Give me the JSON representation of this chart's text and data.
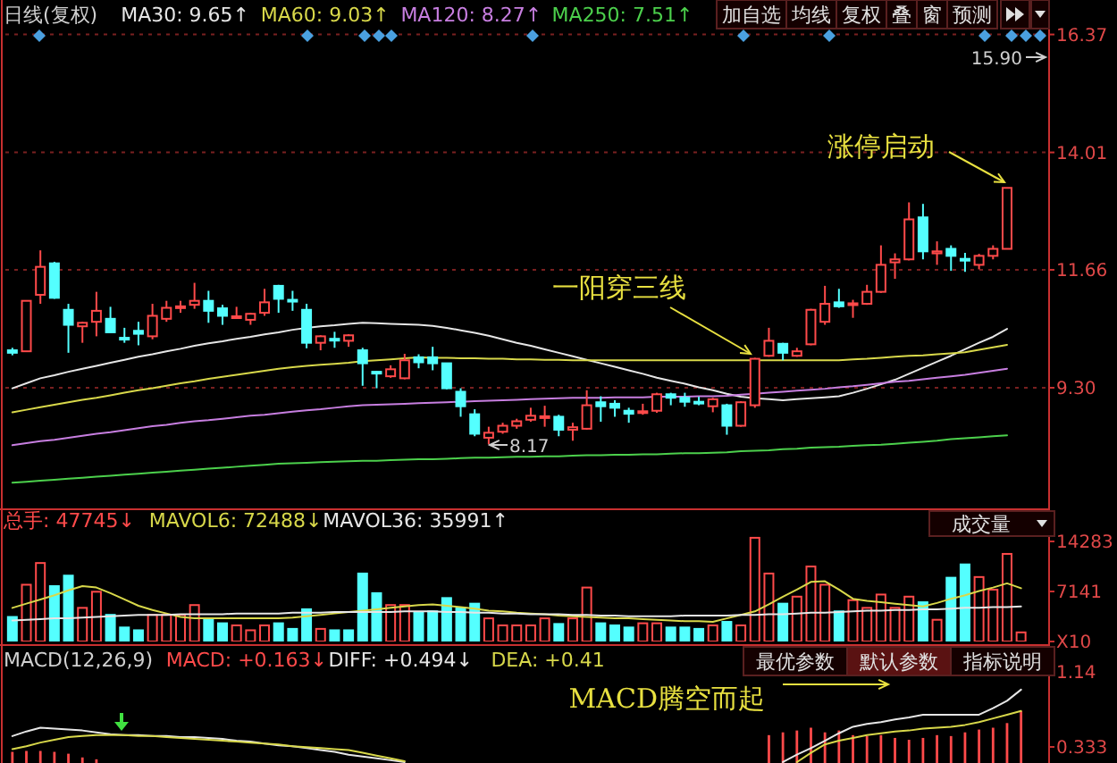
{
  "chart_data": [
    {
      "type": "candlestick",
      "title": "日线(复权)",
      "legend": "top left",
      "grid": "y",
      "tick_labels": "y",
      "categories": [
        null,
        null,
        null,
        null,
        null,
        null,
        null,
        null,
        null,
        null,
        null,
        null,
        null,
        null,
        null,
        null,
        null,
        null,
        null,
        null,
        null,
        null,
        null,
        null,
        null,
        null,
        null,
        null,
        null,
        null,
        null,
        null,
        null,
        null,
        null,
        null,
        null,
        null,
        null,
        null,
        null,
        null,
        null,
        null,
        null,
        null,
        null,
        null,
        null,
        null,
        null,
        null,
        null,
        null,
        null,
        null,
        null,
        null,
        null,
        null,
        null,
        null,
        null,
        null,
        null,
        null,
        null,
        null,
        null,
        null,
        null,
        null
      ],
      "ohlc": [
        [
          10.05,
          10.1,
          9.95,
          10.0
        ],
        [
          10.03,
          11.04,
          10.03,
          11.04
        ],
        [
          11.16,
          12.05,
          10.98,
          11.72
        ],
        [
          11.79,
          11.82,
          11.08,
          11.1
        ],
        [
          10.86,
          10.98,
          10.0,
          10.56
        ],
        [
          10.53,
          10.62,
          10.2,
          10.6
        ],
        [
          10.62,
          11.22,
          10.33,
          10.84
        ],
        [
          10.68,
          10.92,
          10.4,
          10.41
        ],
        [
          10.3,
          10.5,
          10.2,
          10.28
        ],
        [
          10.44,
          10.62,
          10.15,
          10.38
        ],
        [
          10.33,
          10.98,
          10.27,
          10.74
        ],
        [
          10.68,
          11.04,
          10.62,
          10.9
        ],
        [
          10.9,
          11.04,
          10.8,
          10.93
        ],
        [
          10.96,
          11.4,
          10.88,
          11.04
        ],
        [
          11.04,
          11.24,
          10.6,
          10.84
        ],
        [
          10.89,
          10.96,
          10.56,
          10.74
        ],
        [
          10.72,
          10.92,
          10.7,
          10.73
        ],
        [
          10.66,
          10.8,
          10.56,
          10.78
        ],
        [
          10.8,
          11.28,
          10.74,
          11.01
        ],
        [
          11.34,
          11.36,
          10.8,
          11.08
        ],
        [
          11.06,
          11.24,
          10.84,
          11.03
        ],
        [
          10.86,
          10.98,
          10.09,
          10.2
        ],
        [
          10.2,
          10.35,
          10.05,
          10.33
        ],
        [
          10.28,
          10.42,
          10.1,
          10.26
        ],
        [
          10.24,
          10.37,
          10.12,
          10.35
        ],
        [
          10.05,
          10.1,
          9.34,
          9.79
        ],
        [
          9.62,
          9.63,
          9.29,
          9.6
        ],
        [
          9.53,
          9.75,
          9.5,
          9.67
        ],
        [
          9.49,
          9.98,
          9.47,
          9.85
        ],
        [
          9.91,
          9.97,
          9.69,
          9.81
        ],
        [
          9.91,
          10.12,
          9.65,
          9.79
        ],
        [
          9.79,
          9.8,
          9.27,
          9.29
        ],
        [
          9.22,
          9.29,
          8.72,
          8.93
        ],
        [
          8.77,
          8.87,
          8.33,
          8.38
        ],
        [
          8.3,
          8.52,
          8.17,
          8.4
        ],
        [
          8.42,
          8.6,
          8.38,
          8.54
        ],
        [
          8.54,
          8.68,
          8.48,
          8.63
        ],
        [
          8.66,
          8.9,
          8.62,
          8.74
        ],
        [
          8.71,
          8.94,
          8.52,
          8.73
        ],
        [
          8.72,
          8.76,
          8.33,
          8.46
        ],
        [
          8.46,
          8.6,
          8.24,
          8.51
        ],
        [
          8.48,
          9.25,
          8.46,
          8.95
        ],
        [
          9.01,
          9.13,
          8.62,
          8.93
        ],
        [
          8.98,
          9.05,
          8.72,
          8.9
        ],
        [
          8.84,
          8.9,
          8.6,
          8.78
        ],
        [
          8.81,
          8.98,
          8.76,
          8.83
        ],
        [
          8.84,
          9.2,
          8.8,
          9.17
        ],
        [
          9.17,
          9.2,
          8.95,
          9.1
        ],
        [
          9.1,
          9.2,
          8.92,
          9.02
        ],
        [
          9.02,
          9.12,
          8.95,
          9.0
        ],
        [
          8.93,
          9.1,
          8.81,
          9.07
        ],
        [
          8.95,
          8.98,
          8.36,
          8.54
        ],
        [
          8.54,
          9.03,
          8.52,
          9.01
        ],
        [
          8.95,
          9.9,
          8.9,
          9.88
        ],
        [
          9.94,
          10.5,
          9.92,
          10.24
        ],
        [
          10.18,
          10.2,
          9.85,
          10.0
        ],
        [
          9.94,
          10.1,
          9.92,
          10.03
        ],
        [
          10.17,
          10.88,
          10.15,
          10.86
        ],
        [
          10.62,
          11.34,
          10.56,
          10.98
        ],
        [
          11.01,
          11.28,
          10.9,
          10.93
        ],
        [
          10.96,
          11.06,
          10.7,
          10.99
        ],
        [
          10.98,
          11.36,
          10.96,
          11.22
        ],
        [
          11.22,
          12.15,
          11.2,
          11.76
        ],
        [
          11.81,
          11.99,
          11.48,
          11.87
        ],
        [
          11.87,
          13.01,
          11.85,
          12.67
        ],
        [
          12.71,
          12.98,
          11.87,
          12.03
        ],
        [
          11.99,
          12.23,
          11.76,
          12.03
        ],
        [
          12.08,
          12.15,
          11.64,
          11.94
        ],
        [
          11.88,
          12.0,
          11.62,
          11.86
        ],
        [
          11.76,
          11.98,
          11.67,
          11.94
        ],
        [
          11.94,
          12.15,
          11.87,
          12.08
        ],
        [
          12.08,
          13.3,
          12.08,
          13.3
        ]
      ],
      "series": [
        {
          "type": "line",
          "name": "MA30: 9.65↑",
          "color": "#e6e6e6",
          "values": [
            9.29,
            9.39,
            9.49,
            9.55,
            9.62,
            9.68,
            9.74,
            9.8,
            9.86,
            9.92,
            9.97,
            10.03,
            10.08,
            10.14,
            10.19,
            10.23,
            10.28,
            10.32,
            10.37,
            10.41,
            10.46,
            10.5,
            10.53,
            10.55,
            10.58,
            10.6,
            10.59,
            10.58,
            10.57,
            10.56,
            10.54,
            10.5,
            10.45,
            10.4,
            10.34,
            10.27,
            10.2,
            10.14,
            10.07,
            10.0,
            9.93,
            9.86,
            9.79,
            9.72,
            9.65,
            9.58,
            9.5,
            9.44,
            9.38,
            9.31,
            9.25,
            9.18,
            9.12,
            9.09,
            9.07,
            9.05,
            9.07,
            9.09,
            9.11,
            9.13,
            9.2,
            9.28,
            9.37,
            9.46,
            9.58,
            9.7,
            9.82,
            9.94,
            10.07,
            10.2,
            10.32,
            10.48
          ]
        },
        {
          "type": "line",
          "name": "MA60: 9.03↑",
          "color": "#d8d84a",
          "values": [
            8.81,
            8.86,
            8.91,
            8.96,
            9.01,
            9.06,
            9.1,
            9.15,
            9.2,
            9.25,
            9.29,
            9.34,
            9.39,
            9.43,
            9.48,
            9.52,
            9.56,
            9.6,
            9.64,
            9.68,
            9.71,
            9.74,
            9.76,
            9.78,
            9.8,
            9.83,
            9.85,
            9.87,
            9.89,
            9.91,
            9.9,
            9.9,
            9.89,
            9.89,
            9.88,
            9.88,
            9.87,
            9.87,
            9.86,
            9.86,
            9.85,
            9.85,
            9.85,
            9.85,
            9.85,
            9.85,
            9.85,
            9.85,
            9.85,
            9.85,
            9.85,
            9.85,
            9.85,
            9.85,
            9.85,
            9.85,
            9.85,
            9.85,
            9.85,
            9.85,
            9.87,
            9.88,
            9.9,
            9.92,
            9.94,
            9.95,
            9.97,
            9.99,
            10.01,
            10.06,
            10.11,
            10.16
          ]
        },
        {
          "type": "line",
          "name": "MA120: 8.27↑",
          "color": "#c77ee0",
          "values": [
            8.15,
            8.19,
            8.23,
            8.26,
            8.3,
            8.34,
            8.38,
            8.41,
            8.45,
            8.49,
            8.53,
            8.56,
            8.6,
            8.63,
            8.65,
            8.68,
            8.71,
            8.74,
            8.76,
            8.79,
            8.82,
            8.85,
            8.87,
            8.9,
            8.93,
            8.95,
            8.96,
            8.97,
            8.98,
            8.99,
            9.0,
            9.01,
            9.02,
            9.03,
            9.04,
            9.05,
            9.06,
            9.07,
            9.08,
            9.09,
            9.1,
            9.1,
            9.1,
            9.11,
            9.11,
            9.11,
            9.12,
            9.12,
            9.12,
            9.13,
            9.13,
            9.14,
            9.16,
            9.18,
            9.2,
            9.22,
            9.24,
            9.26,
            9.28,
            9.31,
            9.33,
            9.36,
            9.39,
            9.42,
            9.44,
            9.47,
            9.5,
            9.53,
            9.56,
            9.6,
            9.64,
            9.68
          ]
        },
        {
          "type": "line",
          "name": "MA250: 7.51↑",
          "color": "#4cd04c",
          "values": [
            7.4,
            7.42,
            7.44,
            7.46,
            7.48,
            7.5,
            7.52,
            7.54,
            7.56,
            7.58,
            7.6,
            7.62,
            7.64,
            7.66,
            7.68,
            7.7,
            7.72,
            7.74,
            7.76,
            7.78,
            7.79,
            7.8,
            7.81,
            7.82,
            7.83,
            7.84,
            7.84,
            7.85,
            7.86,
            7.87,
            7.87,
            7.88,
            7.89,
            7.9,
            7.9,
            7.91,
            7.92,
            7.92,
            7.93,
            7.93,
            7.94,
            7.95,
            7.95,
            7.96,
            7.96,
            7.97,
            7.97,
            7.98,
            7.99,
            7.99,
            8.0,
            8.01,
            8.03,
            8.04,
            8.05,
            8.07,
            8.08,
            8.1,
            8.11,
            8.12,
            8.14,
            8.15,
            8.16,
            8.18,
            8.2,
            8.22,
            8.24,
            8.27,
            8.29,
            8.31,
            8.33,
            8.35
          ]
        }
      ],
      "ylim": [
        6.94,
        17.06
      ],
      "yticks": [
        {
          "value": 9.3,
          "label": "9.30"
        },
        11.66,
        14.01,
        16.37
      ],
      "annotations": [
        "加自选",
        "均线",
        "复权",
        "叠",
        "窗",
        "预测",
        "8.17",
        "15.90",
        "一阳穿三线",
        "涨停启动"
      ]
    },
    {
      "type": "bar",
      "tick_labels": "y",
      "categories": [
        null,
        null,
        null,
        null,
        null,
        null,
        null,
        null,
        null,
        null,
        null,
        null,
        null,
        null,
        null,
        null,
        null,
        null,
        null,
        null,
        null,
        null,
        null,
        null,
        null,
        null,
        null,
        null,
        null,
        null,
        null,
        null,
        null,
        null,
        null,
        null,
        null,
        null,
        null,
        null,
        null,
        null,
        null,
        null,
        null,
        null,
        null,
        null,
        null,
        null,
        null,
        null,
        null,
        null,
        null,
        null,
        null,
        null,
        null,
        null,
        null,
        null,
        null,
        null,
        null,
        null,
        null,
        null,
        null,
        null,
        null,
        null,
        null
      ],
      "series": [
        {
          "type": "bar",
          "name": "总手: 47745↓",
          "color": "#ff4a4a",
          "values": [
            3500,
            8100,
            11200,
            7900,
            9400,
            4800,
            7100,
            3800,
            2000,
            1600,
            3800,
            3800,
            3800,
            5200,
            3300,
            2600,
            2300,
            1600,
            2300,
            2600,
            1800,
            4600,
            1800,
            1600,
            1600,
            9700,
            6900,
            5200,
            5200,
            4100,
            4300,
            6200,
            4800,
            5400,
            3300,
            2300,
            2300,
            2300,
            3300,
            2500,
            3300,
            7700,
            2600,
            2300,
            2000,
            2600,
            2600,
            2000,
            2000,
            1800,
            2300,
            2800,
            2300,
            14800,
            9700,
            5400,
            6400,
            10700,
            8100,
            4300,
            5900,
            4800,
            6700,
            4800,
            6400,
            5600,
            3100,
            9100,
            11000,
            9200,
            7400,
            12500,
            1300
          ],
          "colors": [
            "#54ffff",
            "#ff4a4a",
            "#ff4a4a",
            "#54ffff",
            "#54ffff",
            "#ff4a4a",
            "#ff4a4a",
            "#54ffff",
            "#54ffff",
            "#54ffff",
            "#ff4a4a",
            "#ff4a4a",
            "#ff4a4a",
            "#ff4a4a",
            "#54ffff",
            "#54ffff",
            "#ff4a4a",
            "#ff4a4a",
            "#ff4a4a",
            "#54ffff",
            "#54ffff",
            "#54ffff",
            "#ff4a4a",
            "#54ffff",
            "#54ffff",
            "#54ffff",
            "#54ffff",
            "#ff4a4a",
            "#ff4a4a",
            "#54ffff",
            "#54ffff",
            "#54ffff",
            "#54ffff",
            "#54ffff",
            "#ff4a4a",
            "#ff4a4a",
            "#ff4a4a",
            "#ff4a4a",
            "#ff4a4a",
            "#54ffff",
            "#ff4a4a",
            "#ff4a4a",
            "#54ffff",
            "#54ffff",
            "#54ffff",
            "#ff4a4a",
            "#ff4a4a",
            "#54ffff",
            "#54ffff",
            "#54ffff",
            "#ff4a4a",
            "#54ffff",
            "#ff4a4a",
            "#ff4a4a",
            "#ff4a4a",
            "#54ffff",
            "#ff4a4a",
            "#ff4a4a",
            "#ff4a4a",
            "#54ffff",
            "#ff4a4a",
            "#ff4a4a",
            "#ff4a4a",
            "#ff4a4a",
            "#ff4a4a",
            "#54ffff",
            "#ff4a4a",
            "#54ffff",
            "#54ffff",
            "#ff4a4a",
            "#ff4a4a",
            "#ff4a4a",
            "#ff4a4a"
          ]
        },
        {
          "type": "line",
          "name": "MAVOL6: 72488↓",
          "color": "#d8d84a",
          "values": [
            4800,
            5400,
            6000,
            6600,
            7300,
            7900,
            7700,
            6900,
            6000,
            5100,
            4500,
            4000,
            3500,
            3300,
            3300,
            3300,
            3300,
            3300,
            3300,
            3300,
            3400,
            3600,
            3800,
            4000,
            4200,
            4400,
            4600,
            4800,
            5000,
            5200,
            5300,
            5100,
            4900,
            4700,
            4400,
            4300,
            4100,
            4000,
            3900,
            3700,
            3600,
            3500,
            3400,
            3300,
            3300,
            3200,
            3100,
            3000,
            2900,
            2900,
            2800,
            3300,
            3800,
            4300,
            5300,
            6400,
            7400,
            8500,
            8600,
            7400,
            6100,
            5800,
            5600,
            5400,
            5200,
            5000,
            5500,
            6100,
            6600,
            7200,
            7700,
            8300,
            7600
          ]
        },
        {
          "type": "line",
          "name": "MAVOL36: 35991↑",
          "color": "#e6e6e6",
          "values": [
            3000,
            3100,
            3200,
            3300,
            3300,
            3400,
            3500,
            3600,
            3700,
            3800,
            3800,
            3800,
            3900,
            3900,
            3900,
            3900,
            4000,
            4000,
            4000,
            4000,
            4100,
            4100,
            4100,
            4200,
            4200,
            4200,
            4200,
            4200,
            4300,
            4300,
            4300,
            4200,
            4200,
            4100,
            4100,
            4000,
            4000,
            3900,
            3900,
            3900,
            3800,
            3800,
            3700,
            3700,
            3600,
            3600,
            3600,
            3600,
            3700,
            3700,
            3700,
            3700,
            3800,
            3800,
            3900,
            3900,
            4000,
            4100,
            4100,
            4200,
            4300,
            4400,
            4400,
            4500,
            4500,
            4600,
            4600,
            4700,
            4800,
            4800,
            4900,
            4900,
            5000
          ]
        }
      ],
      "ylim": [
        0,
        18870
      ],
      "yticks": [
        {
          "value": 0,
          "label": "X10"
        },
        7141,
        14283
      ],
      "annotations": [
        "成交量"
      ]
    },
    {
      "type": "bar",
      "title": "MACD(12,26,9)",
      "tick_labels": "y",
      "categories": [
        null,
        null,
        null,
        null,
        null,
        null,
        null,
        null,
        null,
        null,
        null,
        null,
        null,
        null,
        null,
        null,
        null,
        null,
        null,
        null,
        null,
        null,
        null,
        null,
        null,
        null,
        null,
        null,
        null,
        null,
        null,
        null,
        null,
        null,
        null,
        null,
        null,
        null,
        null,
        null,
        null,
        null,
        null,
        null,
        null,
        null,
        null,
        null,
        null,
        null,
        null,
        null,
        null,
        null,
        null,
        null,
        null,
        null,
        null,
        null,
        null,
        null,
        null,
        null,
        null,
        null,
        null,
        null,
        null,
        null,
        null,
        null,
        null
      ],
      "series": [
        {
          "type": "bar",
          "name": "MACD: +0.163↓",
          "color": "#ff4a4a",
          "values": [
            0.28,
            0.29,
            0.29,
            0.28,
            0.26,
            0.22,
            0.2,
            null,
            null,
            null,
            null,
            null,
            null,
            null,
            null,
            null,
            null,
            null,
            null,
            null,
            null,
            null,
            null,
            null,
            null,
            null,
            null,
            null,
            null,
            null,
            null,
            null,
            null,
            null,
            null,
            null,
            null,
            null,
            null,
            null,
            null,
            null,
            null,
            null,
            null,
            null,
            null,
            null,
            null,
            null,
            null,
            null,
            null,
            null,
            0.46,
            0.49,
            0.51,
            0.54,
            0.49,
            0.51,
            0.46,
            0.45,
            0.46,
            0.43,
            0.41,
            0.43,
            0.46,
            0.45,
            0.49,
            0.52,
            0.54,
            0.59,
            0.72
          ]
        },
        {
          "type": "line",
          "name": "DIFF: +0.494↓",
          "color": "#e6e6e6",
          "values": [
            0.45,
            0.5,
            0.54,
            0.53,
            0.52,
            0.51,
            0.49,
            0.47,
            0.46,
            0.46,
            0.45,
            0.45,
            0.44,
            0.44,
            0.43,
            0.42,
            0.4,
            0.39,
            0.37,
            0.35,
            0.34,
            0.32,
            0.3,
            0.28,
            0.25,
            0.23,
            0.21,
            0.19,
            0.17,
            null,
            null,
            null,
            null,
            null,
            null,
            null,
            null,
            null,
            null,
            null,
            null,
            null,
            null,
            null,
            null,
            null,
            null,
            null,
            null,
            null,
            null,
            null,
            null,
            null,
            null,
            0.17,
            0.25,
            0.32,
            0.4,
            0.48,
            0.55,
            0.58,
            0.6,
            0.63,
            0.65,
            0.68,
            0.68,
            0.68,
            0.68,
            0.68,
            0.75,
            0.83,
            0.95
          ]
        },
        {
          "type": "line",
          "name": "DEA: +0.41",
          "color": "#d8d84a",
          "values": [
            0.31,
            0.34,
            0.38,
            0.41,
            0.44,
            0.45,
            0.46,
            0.46,
            0.46,
            0.45,
            0.45,
            0.44,
            0.43,
            0.42,
            0.41,
            0.4,
            0.39,
            0.38,
            0.37,
            0.36,
            0.34,
            0.33,
            0.32,
            0.31,
            0.3,
            0.27,
            0.24,
            0.21,
            0.18,
            null,
            null,
            null,
            null,
            null,
            null,
            null,
            null,
            null,
            null,
            null,
            null,
            null,
            null,
            null,
            null,
            null,
            null,
            null,
            null,
            null,
            null,
            null,
            null,
            null,
            null,
            null,
            0.17,
            0.27,
            0.36,
            0.4,
            0.43,
            0.46,
            0.48,
            0.5,
            0.51,
            0.53,
            0.54,
            0.55,
            0.57,
            0.6,
            0.64,
            0.68,
            0.72
          ]
        }
      ],
      "ylim": [
        0.16,
        1.43
      ],
      "yticks": [
        0.333,
        1.14
      ],
      "annotations": [
        "最优参数",
        "默认参数",
        "指标说明",
        "MACD腾空而起"
      ]
    }
  ]
}
